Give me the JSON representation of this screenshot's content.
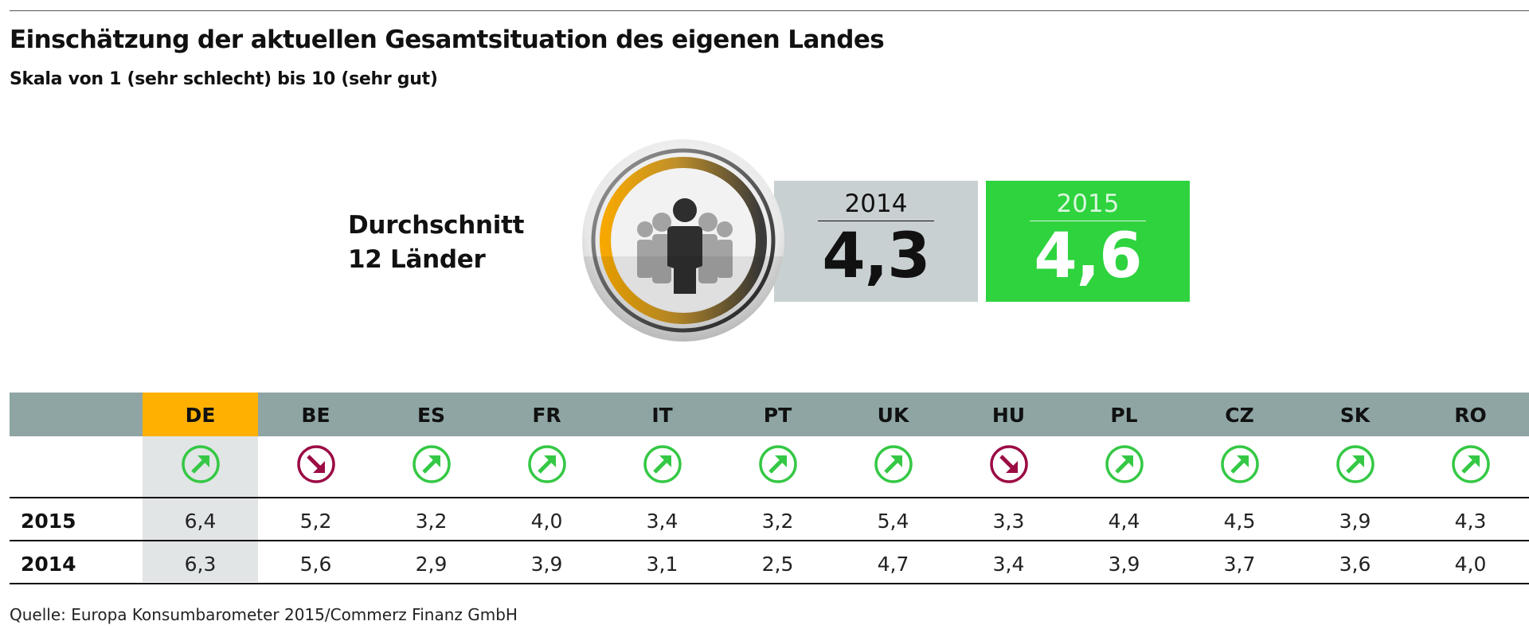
{
  "header": {
    "title": "Einschätzung der aktuellen Gesamtsituation des eigenen Landes",
    "subtitle": "Skala von 1 (sehr schlecht) bis 10 (sehr gut)"
  },
  "average": {
    "label_line1": "Durchschnitt",
    "label_line2": "12 Länder",
    "icon": "people-group-icon",
    "boxes": [
      {
        "year": "2014",
        "value": "4,3",
        "color": "#c8d0d2"
      },
      {
        "year": "2015",
        "value": "4,6",
        "color": "#2ed33e"
      }
    ]
  },
  "colors": {
    "header_bg": "#8ea5a4",
    "highlight": "#ffb000",
    "highlight_col_bg": "#e1e5e5",
    "up": "#35c845",
    "down": "#9b0c45"
  },
  "source": "Quelle: Europa Konsumbarometer 2015/Commerz Finanz GmbH",
  "chart_data": {
    "type": "table",
    "title": "Einschätzung der aktuellen Gesamtsituation des eigenen Landes",
    "subtitle": "Skala von 1 (sehr schlecht) bis 10 (sehr gut)",
    "scale": [
      1,
      10
    ],
    "highlighted_category": "DE",
    "average_12_countries": {
      "2014": 4.3,
      "2015": 4.6
    },
    "categories": [
      "DE",
      "BE",
      "ES",
      "FR",
      "IT",
      "PT",
      "UK",
      "HU",
      "PL",
      "CZ",
      "SK",
      "RO"
    ],
    "trend": [
      "up",
      "down",
      "up",
      "up",
      "up",
      "up",
      "up",
      "down",
      "up",
      "up",
      "up",
      "up"
    ],
    "series": [
      {
        "name": "2015",
        "values": [
          6.4,
          5.2,
          3.2,
          4.0,
          3.4,
          3.2,
          5.4,
          3.3,
          4.4,
          4.5,
          3.9,
          4.3
        ],
        "labels": [
          "6,4",
          "5,2",
          "3,2",
          "4,0",
          "3,4",
          "3,2",
          "5,4",
          "3,3",
          "4,4",
          "4,5",
          "3,9",
          "4,3"
        ]
      },
      {
        "name": "2014",
        "values": [
          6.3,
          5.6,
          2.9,
          3.9,
          3.1,
          2.5,
          4.7,
          3.4,
          3.9,
          3.7,
          3.6,
          4.0
        ],
        "labels": [
          "6,3",
          "5,6",
          "2,9",
          "3,9",
          "3,1",
          "2,5",
          "4,7",
          "3,4",
          "3,9",
          "3,7",
          "3,6",
          "4,0"
        ]
      }
    ]
  }
}
